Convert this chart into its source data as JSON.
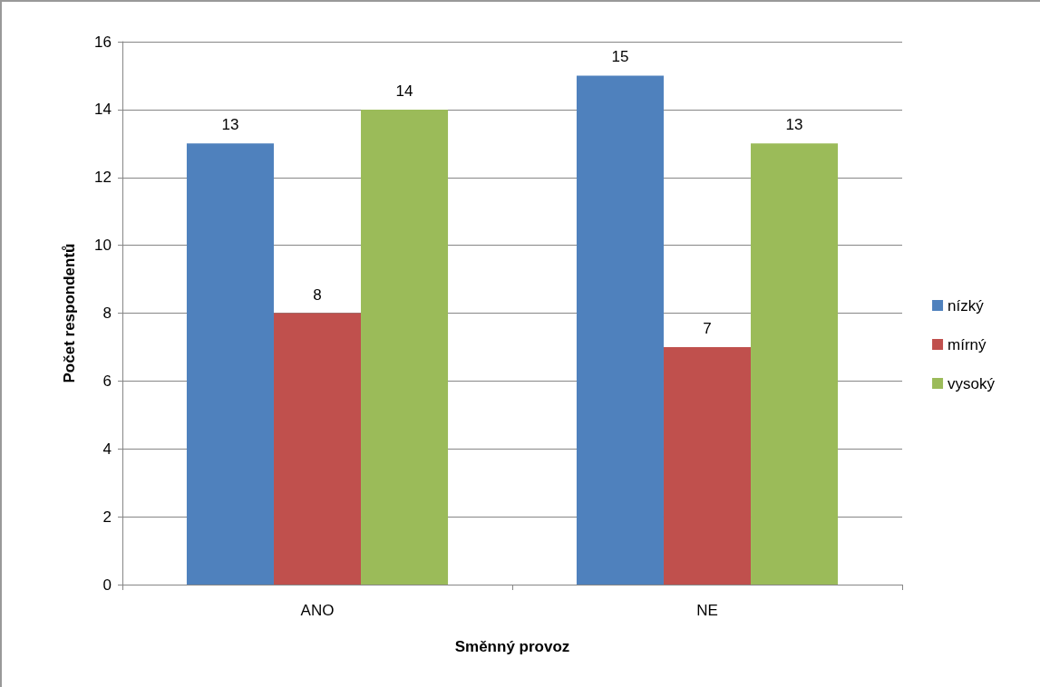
{
  "chart_data": {
    "type": "bar",
    "xlabel": "Směnný provoz",
    "ylabel": "Počet respondentů",
    "categories": [
      "ANO",
      "NE"
    ],
    "series": [
      {
        "name": "nízký",
        "color": "#4f81bd",
        "values": [
          13,
          15
        ]
      },
      {
        "name": "mírný",
        "color": "#c0504d",
        "values": [
          8,
          7
        ]
      },
      {
        "name": "vysoký",
        "color": "#9bbb59",
        "values": [
          14,
          13
        ]
      }
    ],
    "ylim": [
      0,
      16
    ],
    "yticks": [
      0,
      2,
      4,
      6,
      8,
      10,
      12,
      14,
      16
    ],
    "grid": "y",
    "legend": "right",
    "data_labels": true
  }
}
